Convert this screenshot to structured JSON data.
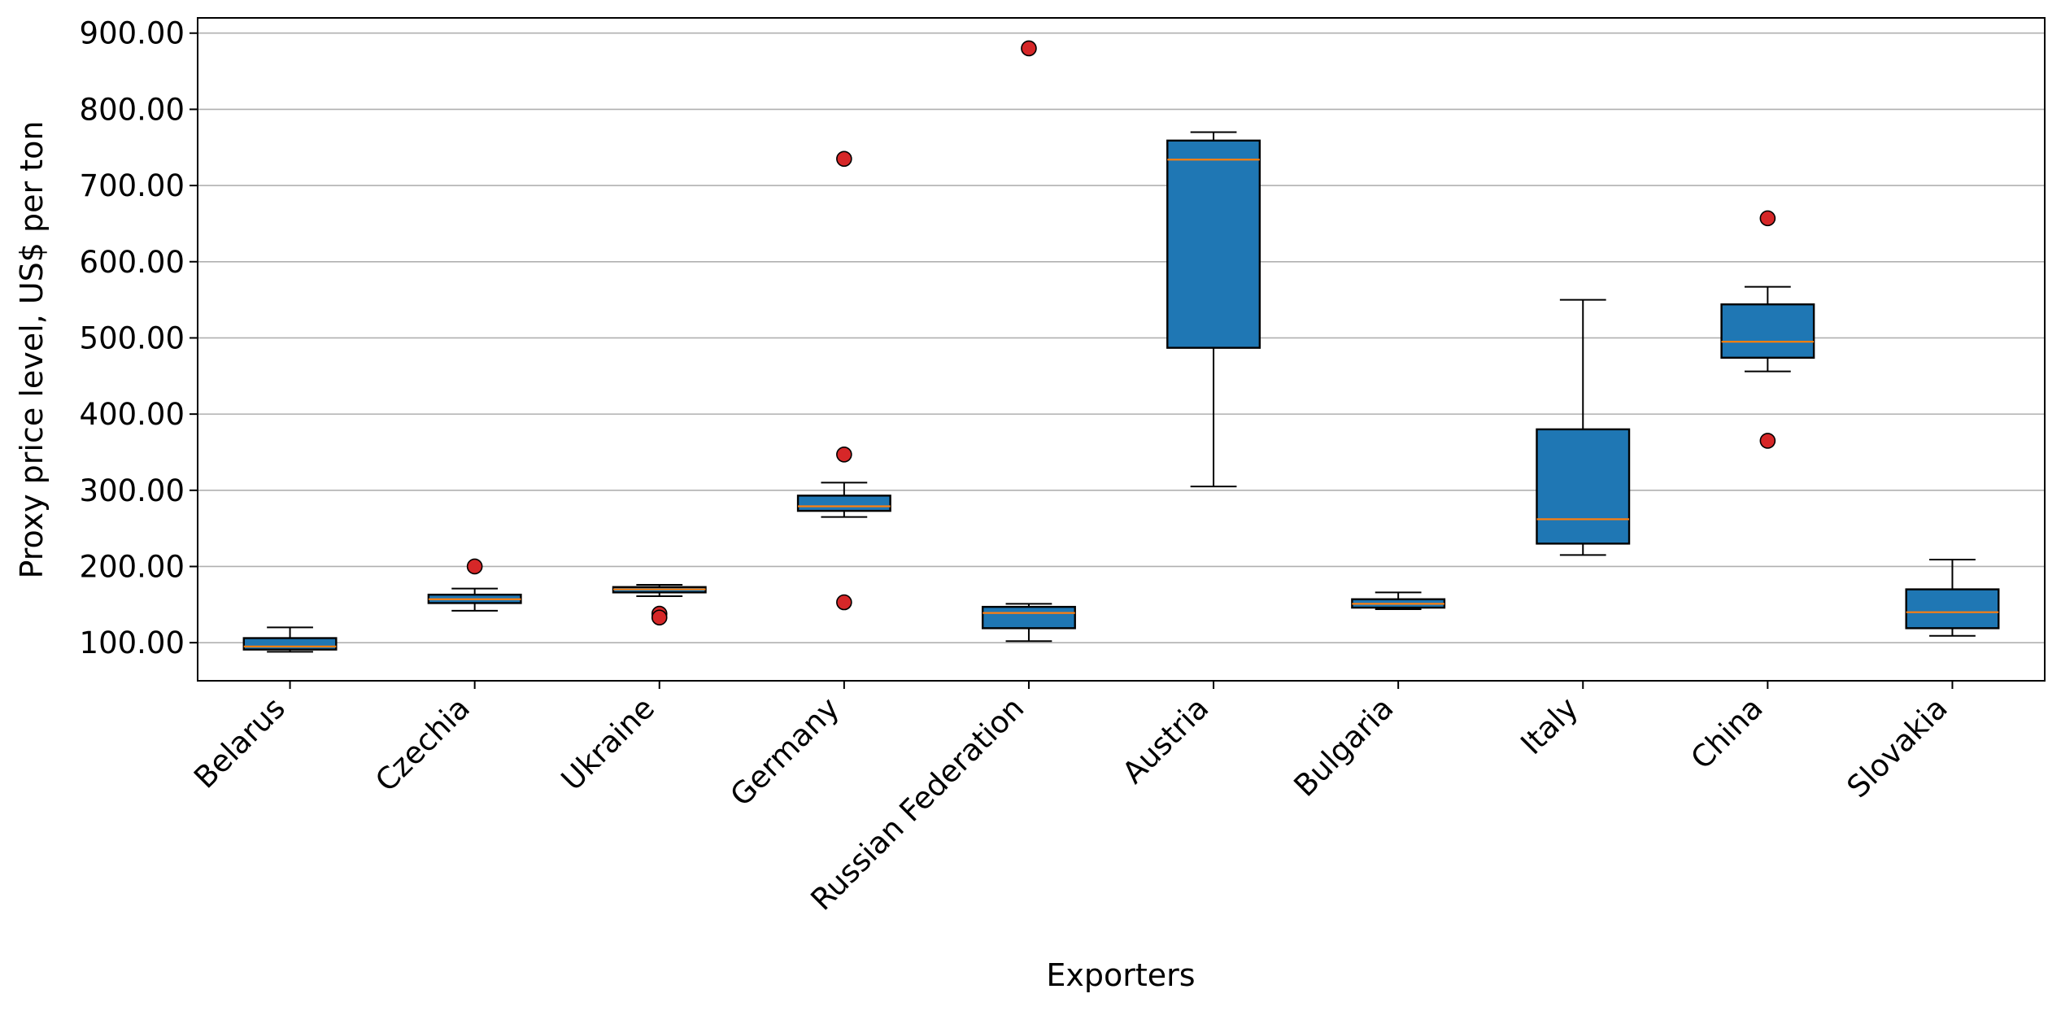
{
  "chart_data": {
    "type": "box",
    "xlabel": "Exporters",
    "ylabel": "Proxy price level, US$ per ton",
    "ylim": [
      50,
      920
    ],
    "yticks": [
      100,
      200,
      300,
      400,
      500,
      600,
      700,
      800,
      900
    ],
    "ytick_labels": [
      "100.00",
      "200.00",
      "300.00",
      "400.00",
      "500.00",
      "600.00",
      "700.00",
      "800.00",
      "900.00"
    ],
    "grid": "horizontal",
    "legend": "none",
    "colors": {
      "box_fill": "#1f77b4",
      "median": "#ff7f0e",
      "outlier": "#d62728",
      "grid": "#b0b0b0"
    },
    "categories": [
      "Belarus",
      "Czechia",
      "Ukraine",
      "Germany",
      "Russian Federation",
      "Austria",
      "Bulgaria",
      "Italy",
      "China",
      "Slovakia"
    ],
    "boxes": [
      {
        "whisker_low": 88,
        "q1": 91,
        "median": 95,
        "q3": 106,
        "whisker_high": 120,
        "outliers": []
      },
      {
        "whisker_low": 142,
        "q1": 152,
        "median": 157,
        "q3": 163,
        "whisker_high": 171,
        "outliers": [
          200
        ]
      },
      {
        "whisker_low": 161,
        "q1": 166,
        "median": 170,
        "q3": 173,
        "whisker_high": 176,
        "outliers": [
          138,
          133
        ]
      },
      {
        "whisker_low": 265,
        "q1": 273,
        "median": 279,
        "q3": 293,
        "whisker_high": 310,
        "outliers": [
          735,
          347,
          153
        ]
      },
      {
        "whisker_low": 102,
        "q1": 119,
        "median": 139,
        "q3": 147,
        "whisker_high": 151,
        "outliers": [
          880
        ]
      },
      {
        "whisker_low": 305,
        "q1": 487,
        "median": 734,
        "q3": 759,
        "whisker_high": 770,
        "outliers": []
      },
      {
        "whisker_low": 144,
        "q1": 146,
        "median": 151,
        "q3": 157,
        "whisker_high": 166,
        "outliers": []
      },
      {
        "whisker_low": 215,
        "q1": 230,
        "median": 262,
        "q3": 380,
        "whisker_high": 550,
        "outliers": []
      },
      {
        "whisker_low": 456,
        "q1": 474,
        "median": 495,
        "q3": 544,
        "whisker_high": 567,
        "outliers": [
          657,
          365
        ]
      },
      {
        "whisker_low": 109,
        "q1": 119,
        "median": 140,
        "q3": 170,
        "whisker_high": 209,
        "outliers": []
      }
    ]
  }
}
